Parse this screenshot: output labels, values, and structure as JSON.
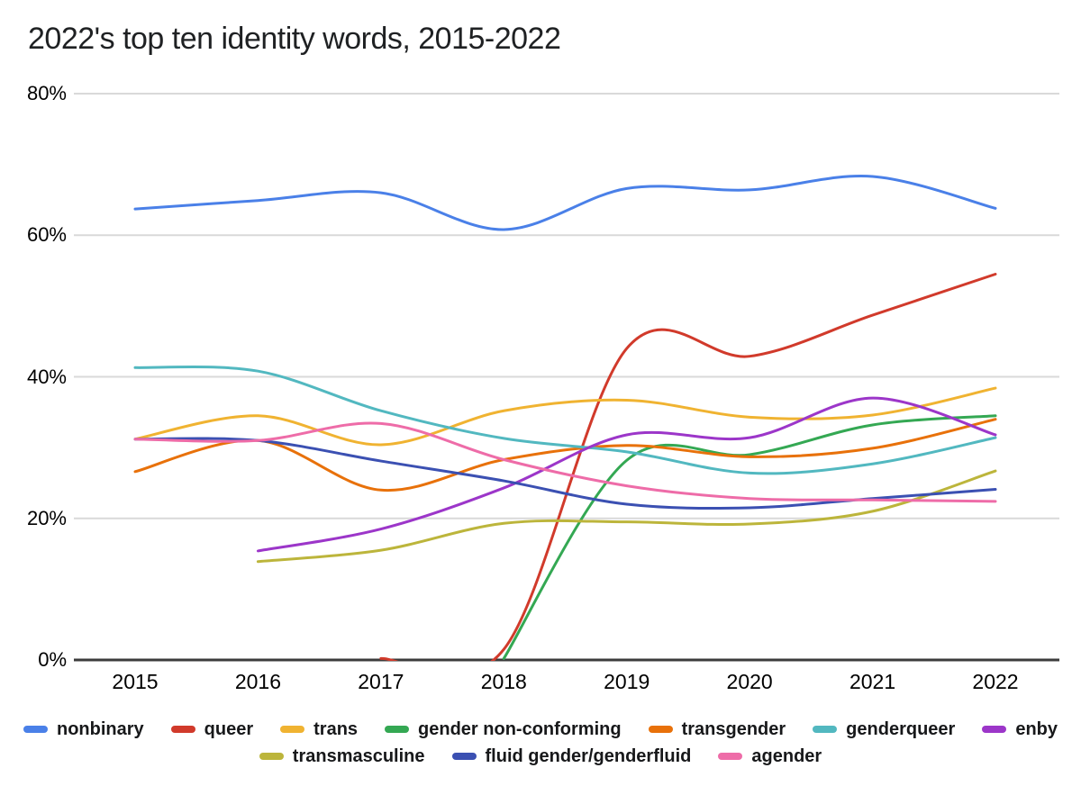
{
  "title": "2022's top ten identity words, 2015-2022",
  "chart_data": {
    "type": "line",
    "title": "2022's top ten identity words, 2015-2022",
    "categories": [
      "2015",
      "2016",
      "2017",
      "2018",
      "2019",
      "2020",
      "2021",
      "2022"
    ],
    "xlabel": "",
    "ylabel": "",
    "ylim": [
      0,
      80
    ],
    "y_ticks": [
      {
        "value": 0,
        "label": "0%"
      },
      {
        "value": 20,
        "label": "20%"
      },
      {
        "value": 40,
        "label": "40%"
      },
      {
        "value": 60,
        "label": "60%"
      },
      {
        "value": 80,
        "label": "80%"
      }
    ],
    "grid": true,
    "smooth_lines": true,
    "legend_position": "bottom",
    "legend_rows": [
      [
        "nonbinary",
        "queer",
        "trans",
        "gender non-conforming",
        "transgender",
        "genderqueer",
        "enby"
      ],
      [
        "transmasculine",
        "fluid gender/genderfluid",
        "agender"
      ]
    ],
    "series": [
      {
        "name": "nonbinary",
        "color": "#4a80e8",
        "values": [
          63.7,
          64.9,
          66.0,
          60.8,
          66.6,
          66.4,
          68.3,
          63.8
        ]
      },
      {
        "name": "queer",
        "color": "#d13a2b",
        "values": [
          null,
          null,
          0.2,
          1.5,
          44.0,
          42.9,
          48.7,
          54.5
        ]
      },
      {
        "name": "trans",
        "color": "#f0b331",
        "values": [
          31.2,
          34.5,
          30.4,
          35.2,
          36.7,
          34.3,
          34.6,
          38.4
        ]
      },
      {
        "name": "gender non-conforming",
        "color": "#34a853",
        "values": [
          null,
          null,
          null,
          0.2,
          28.2,
          29.0,
          33.2,
          34.5
        ]
      },
      {
        "name": "transgender",
        "color": "#e8710a",
        "values": [
          26.6,
          31.0,
          24.0,
          28.3,
          30.3,
          28.7,
          29.9,
          34.0
        ]
      },
      {
        "name": "genderqueer",
        "color": "#52b8c0",
        "values": [
          41.3,
          40.8,
          35.2,
          31.3,
          29.4,
          26.4,
          27.7,
          31.4
        ]
      },
      {
        "name": "enby",
        "color": "#9c36c9",
        "values": [
          null,
          15.4,
          18.5,
          24.3,
          31.8,
          31.4,
          37.0,
          31.8
        ]
      },
      {
        "name": "transmasculine",
        "color": "#bcb53b",
        "values": [
          null,
          13.9,
          15.5,
          19.3,
          19.5,
          19.2,
          21.0,
          26.7
        ]
      },
      {
        "name": "fluid gender/genderfluid",
        "color": "#3b50b2",
        "values": [
          31.2,
          31.0,
          28.1,
          25.3,
          22.0,
          21.5,
          22.8,
          24.1
        ]
      },
      {
        "name": "agender",
        "color": "#ee6ca8",
        "values": [
          31.2,
          31.0,
          33.4,
          28.3,
          24.6,
          22.8,
          22.6,
          22.4
        ]
      }
    ],
    "colors": {
      "gridline": "#d9d9d9",
      "axis_line": "#3c3c3c",
      "background": "#ffffff"
    }
  }
}
